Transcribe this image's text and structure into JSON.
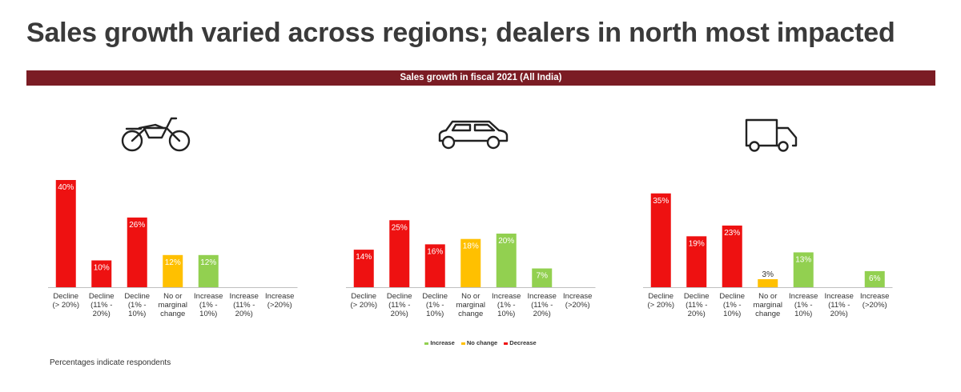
{
  "title": "Sales growth varied across regions; dealers in north most impacted",
  "banner": "Sales growth in fiscal 2021 (All India)",
  "icons": [
    "motorcycle-icon",
    "car-icon",
    "truck-icon"
  ],
  "colors": {
    "decrease": "#ee1111",
    "no_change": "#ffc000",
    "increase": "#92d050",
    "banner": "#7b1c24"
  },
  "legend": [
    {
      "label": "Increase",
      "color": "#92d050"
    },
    {
      "label": "No change",
      "color": "#ffc000"
    },
    {
      "label": "Decrease",
      "color": "#ee1111"
    }
  ],
  "footnote": "Percentages indicate respondents",
  "chart_data": [
    {
      "type": "bar",
      "categories": [
        [
          "Decline",
          "(> 20%)"
        ],
        [
          "Decline",
          "(11% -",
          "20%)"
        ],
        [
          "Decline",
          "(1% -",
          "10%)"
        ],
        [
          "No or",
          "marginal",
          "change"
        ],
        [
          "Increase",
          "(1% -",
          "10%)"
        ],
        [
          "Increase",
          "(11% -",
          "20%)"
        ],
        [
          "Increase",
          "(>20%)"
        ]
      ],
      "values": [
        40,
        10,
        26,
        12,
        12,
        0,
        0
      ],
      "labels": [
        "40%",
        "10%",
        "26%",
        "12%",
        "12%",
        "",
        ""
      ],
      "kinds": [
        "decrease",
        "decrease",
        "decrease",
        "no_change",
        "increase",
        "increase",
        "increase"
      ]
    },
    {
      "type": "bar",
      "categories": [
        [
          "Decline",
          "(> 20%)"
        ],
        [
          "Decline",
          "(11% -",
          "20%)"
        ],
        [
          "Decline",
          "(1% -",
          "10%)"
        ],
        [
          "No or",
          "marginal",
          "change"
        ],
        [
          "Increase",
          "(1% -",
          "10%)"
        ],
        [
          "Increase",
          "(11% -",
          "20%)"
        ],
        [
          "Increase",
          "(>20%)"
        ]
      ],
      "values": [
        14,
        25,
        16,
        18,
        20,
        7,
        0
      ],
      "labels": [
        "14%",
        "25%",
        "16%",
        "18%",
        "20%",
        "7%",
        ""
      ],
      "kinds": [
        "decrease",
        "decrease",
        "decrease",
        "no_change",
        "increase",
        "increase",
        "increase"
      ]
    },
    {
      "type": "bar",
      "categories": [
        [
          "Decline",
          "(> 20%)"
        ],
        [
          "Decline",
          "(11% -",
          "20%)"
        ],
        [
          "Decline",
          "(1% -",
          "10%)"
        ],
        [
          "No or",
          "marginal",
          "change"
        ],
        [
          "Increase",
          "(1% -",
          "10%)"
        ],
        [
          "Increase",
          "(11% -",
          "20%)"
        ],
        [
          "Increase",
          "(>20%)"
        ]
      ],
      "values": [
        35,
        19,
        23,
        3,
        13,
        0,
        6
      ],
      "labels": [
        "35%",
        "19%",
        "23%",
        "3%",
        "13%",
        "",
        "6%"
      ],
      "kinds": [
        "decrease",
        "decrease",
        "decrease",
        "no_change",
        "increase",
        "increase",
        "increase"
      ]
    }
  ]
}
